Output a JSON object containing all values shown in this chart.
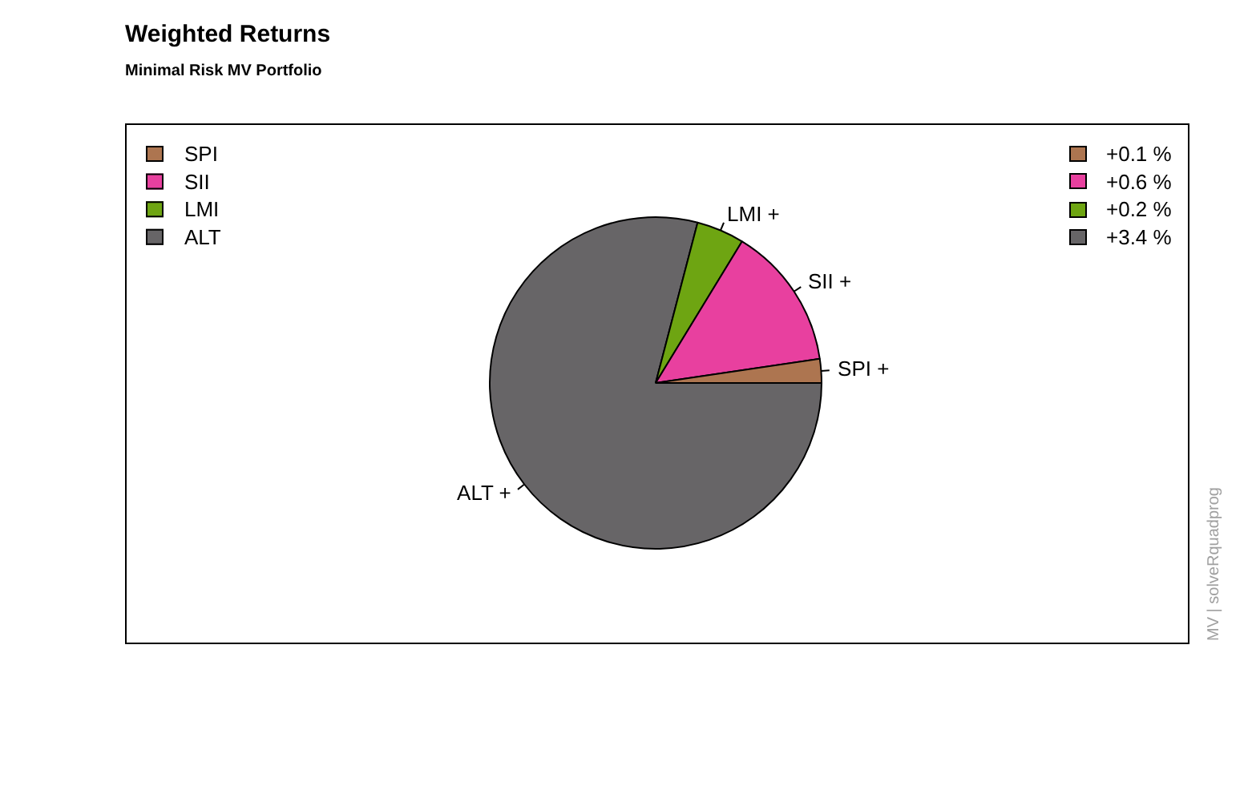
{
  "chart_data": {
    "type": "pie",
    "title": "Weighted Returns",
    "subtitle": "Minimal Risk MV Portfolio",
    "categories": [
      "SPI",
      "SII",
      "LMI",
      "ALT"
    ],
    "values": [
      0.1,
      0.6,
      0.2,
      3.4
    ],
    "colors": [
      "#ad7550",
      "#e8409f",
      "#6ea512",
      "#676567"
    ],
    "value_labels": [
      "+0.1 %",
      "+0.6 %",
      "+0.2 %",
      "+3.4 %"
    ],
    "legend": "top left",
    "annotations": [
      "SPI +",
      "SII +",
      "LMI +",
      "ALT +",
      "MV | solveRquadprog"
    ]
  }
}
